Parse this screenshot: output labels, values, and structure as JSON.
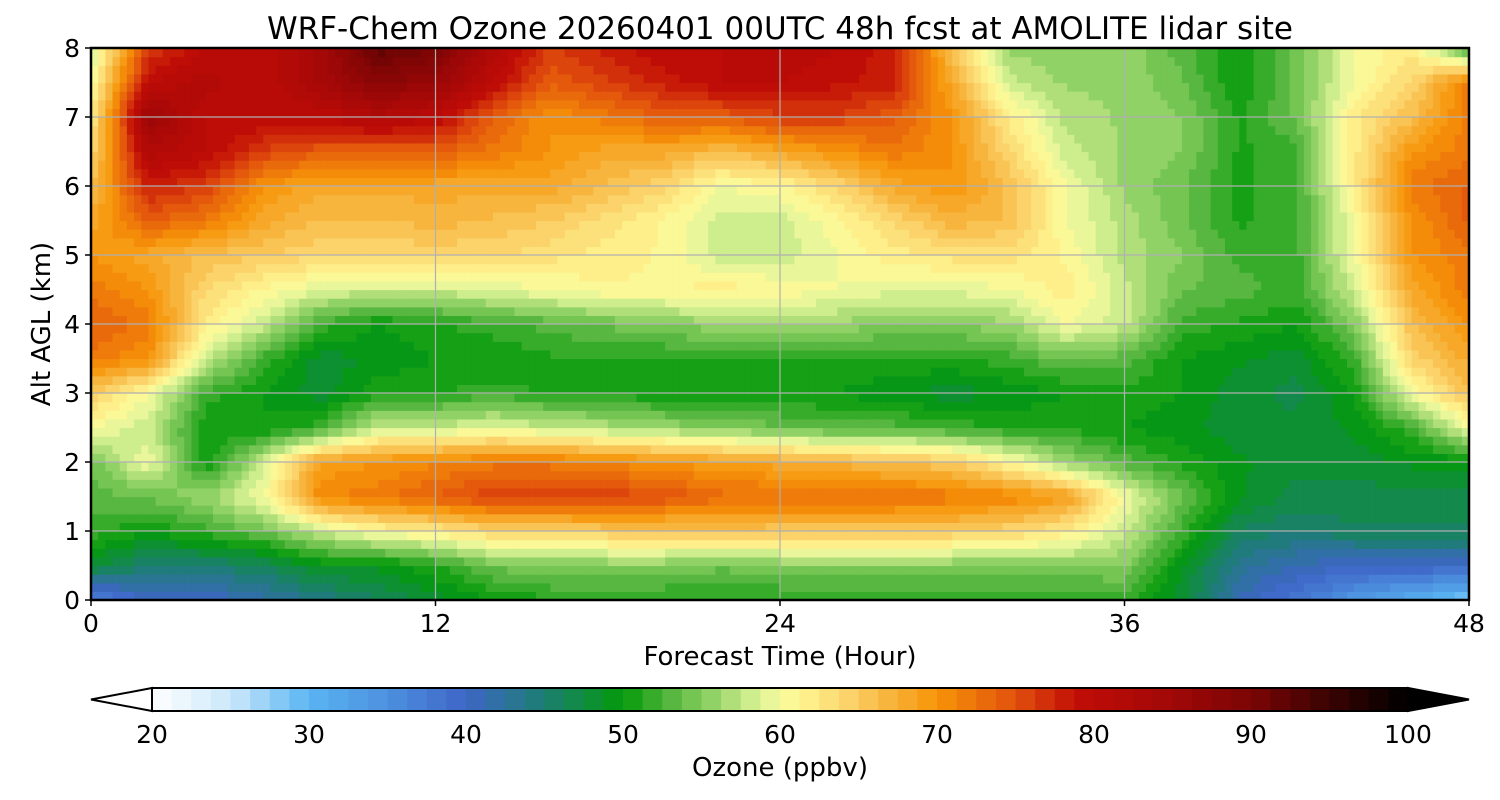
{
  "chart_data": {
    "type": "heatmap",
    "title": "WRF-Chem Ozone  20260401 00UTC 48h fcst at AMOLITE lidar site",
    "xlabel": "Forecast Time (Hour)",
    "ylabel": "Alt AGL (km)",
    "xlim": [
      0,
      48
    ],
    "ylim": [
      0,
      8
    ],
    "x_ticks": [
      "0",
      "12",
      "24",
      "36",
      "48"
    ],
    "y_ticks": [
      "0",
      "1",
      "2",
      "3",
      "4",
      "5",
      "6",
      "7",
      "8"
    ],
    "grid": true,
    "x": [
      0,
      2,
      4,
      6,
      8,
      10,
      12,
      14,
      16,
      18,
      20,
      22,
      24,
      26,
      28,
      30,
      32,
      34,
      36,
      38,
      40,
      42,
      44,
      46,
      48
    ],
    "y": [
      0,
      0.5,
      1,
      1.5,
      2,
      2.5,
      3,
      3.5,
      4,
      4.5,
      5,
      5.5,
      6,
      6.5,
      7,
      7.5,
      8
    ],
    "z": [
      [
        36,
        40,
        40,
        42,
        44,
        46,
        48,
        50,
        51,
        51,
        51,
        51,
        51,
        51,
        51,
        51,
        51,
        51,
        52,
        48,
        41,
        38,
        34,
        31,
        28
      ],
      [
        48,
        45,
        45,
        46,
        49,
        49,
        51,
        54,
        55,
        55,
        55,
        54,
        55,
        55,
        55,
        55,
        55,
        55,
        55,
        49,
        43,
        41,
        40,
        40,
        40
      ],
      [
        52,
        50,
        52,
        54,
        58,
        61,
        62,
        64,
        64,
        65,
        65,
        66,
        65,
        65,
        65,
        65,
        64,
        62,
        58,
        52,
        46,
        45,
        46,
        46,
        46
      ],
      [
        53,
        54,
        56,
        60,
        71,
        72,
        74,
        76,
        76,
        76,
        75,
        73,
        73,
        73,
        73,
        72,
        71,
        69,
        60,
        54,
        49,
        47,
        47,
        47,
        47
      ],
      [
        54,
        60,
        50,
        58,
        69,
        70,
        71,
        72,
        72,
        71,
        70,
        69,
        68,
        67,
        66,
        65,
        61,
        56,
        53,
        51,
        49,
        48,
        48,
        49,
        49
      ],
      [
        60,
        58,
        50,
        50,
        52,
        58,
        58,
        59,
        58,
        57,
        56,
        55,
        54,
        53,
        53,
        52,
        51,
        51,
        50,
        49,
        48,
        48,
        49,
        52,
        60
      ],
      [
        65,
        60,
        52,
        50,
        48,
        51,
        51,
        52,
        51,
        51,
        50,
        50,
        50,
        50,
        49,
        48,
        49,
        50,
        51,
        50,
        48,
        47,
        50,
        60,
        66
      ],
      [
        72,
        70,
        58,
        52,
        48,
        49,
        50,
        50,
        51,
        51,
        51,
        51,
        51,
        51,
        51,
        51,
        52,
        54,
        53,
        50,
        49,
        48,
        52,
        64,
        68
      ],
      [
        74,
        72,
        62,
        58,
        52,
        50,
        51,
        52,
        53,
        54,
        55,
        56,
        56,
        56,
        55,
        55,
        56,
        60,
        58,
        52,
        51,
        50,
        55,
        66,
        70
      ],
      [
        72,
        70,
        64,
        61,
        59,
        58,
        58,
        59,
        60,
        61,
        61,
        62,
        61,
        60,
        59,
        59,
        60,
        62,
        58,
        54,
        53,
        52,
        58,
        68,
        72
      ],
      [
        70,
        68,
        66,
        65,
        64,
        64,
        64,
        64,
        63,
        62,
        61,
        58,
        58,
        60,
        62,
        63,
        63,
        61,
        57,
        55,
        52,
        52,
        60,
        70,
        72
      ],
      [
        68,
        74,
        72,
        68,
        66,
        66,
        67,
        66,
        65,
        63,
        61,
        58,
        58,
        61,
        64,
        67,
        66,
        60,
        57,
        54,
        51,
        52,
        60,
        70,
        74
      ],
      [
        66,
        78,
        76,
        70,
        68,
        68,
        68,
        68,
        68,
        66,
        64,
        60,
        61,
        64,
        68,
        70,
        66,
        60,
        56,
        54,
        51,
        52,
        62,
        72,
        74
      ],
      [
        64,
        82,
        80,
        76,
        74,
        74,
        74,
        72,
        70,
        68,
        68,
        66,
        68,
        70,
        72,
        70,
        64,
        58,
        56,
        55,
        51,
        52,
        62,
        70,
        72
      ],
      [
        62,
        86,
        80,
        80,
        80,
        82,
        80,
        74,
        70,
        72,
        74,
        74,
        76,
        76,
        74,
        70,
        62,
        57,
        56,
        55,
        51,
        54,
        62,
        66,
        72
      ],
      [
        60,
        80,
        82,
        80,
        84,
        88,
        86,
        80,
        74,
        76,
        78,
        80,
        80,
        79,
        78,
        68,
        58,
        56,
        56,
        54,
        50,
        54,
        60,
        64,
        72
      ],
      [
        58,
        76,
        80,
        80,
        84,
        92,
        90,
        82,
        76,
        78,
        80,
        80,
        81,
        80,
        78,
        66,
        56,
        55,
        56,
        53,
        50,
        54,
        60,
        62,
        52
      ]
    ],
    "colorbar": {
      "label": "Ozone  (ppbv)",
      "min": 20,
      "max": 100,
      "ticks": [
        "20",
        "30",
        "40",
        "50",
        "60",
        "70",
        "80",
        "90",
        "100"
      ],
      "extend": "both",
      "stops": [
        [
          20,
          "#ffffff"
        ],
        [
          25,
          "#cbe8fa"
        ],
        [
          30,
          "#5ab5f2"
        ],
        [
          35,
          "#4d90df"
        ],
        [
          40,
          "#3e66c7"
        ],
        [
          45,
          "#1c7e72"
        ],
        [
          50,
          "#049a0a"
        ],
        [
          53,
          "#55b63e"
        ],
        [
          56,
          "#9ad66c"
        ],
        [
          59,
          "#e4f69a"
        ],
        [
          61,
          "#fff896"
        ],
        [
          64,
          "#fbd870"
        ],
        [
          67,
          "#f7b33c"
        ],
        [
          70,
          "#f79508"
        ],
        [
          75,
          "#e1500c"
        ],
        [
          79,
          "#c00c07"
        ],
        [
          85,
          "#a10707"
        ],
        [
          90,
          "#7b0505"
        ],
        [
          95,
          "#3a0303"
        ],
        [
          100,
          "#000000"
        ]
      ]
    }
  }
}
